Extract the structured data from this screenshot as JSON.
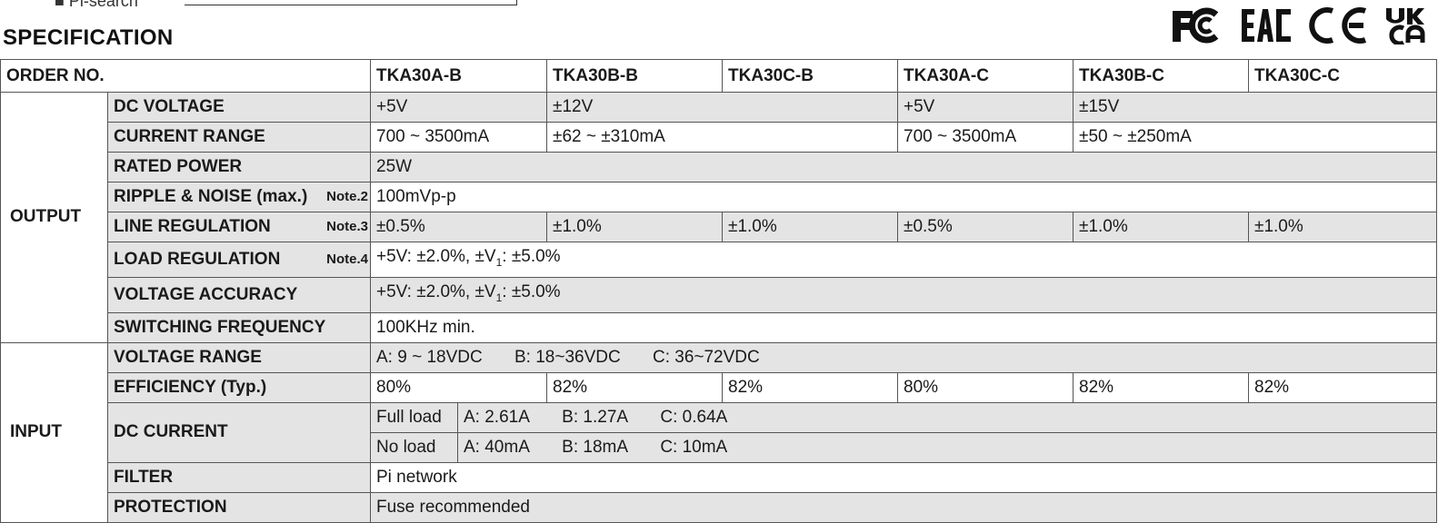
{
  "header": {
    "top_cut_text": "■ Pi-search",
    "title": "SPECIFICATION",
    "certs": [
      "fc-logo",
      "eac-logo",
      "ce-logo",
      "ukca-logo"
    ]
  },
  "table": {
    "order_no_label": "ORDER NO.",
    "models": [
      "TKA30A-B",
      "TKA30B-B",
      "TKA30C-B",
      "TKA30A-C",
      "TKA30B-C",
      "TKA30C-C"
    ],
    "output": {
      "group_label": "OUTPUT",
      "dc_voltage": {
        "label": "DC VOLTAGE",
        "values": [
          "+5V",
          "±12V",
          "+5V",
          "±15V"
        ]
      },
      "current_range": {
        "label": "CURRENT RANGE",
        "values": [
          "700 ~ 3500mA",
          "±62 ~ ±310mA",
          "700 ~ 3500mA",
          "±50 ~ ±250mA"
        ]
      },
      "rated_power": {
        "label": "RATED POWER",
        "value": "25W"
      },
      "ripple_noise": {
        "label": "RIPPLE & NOISE (max.)",
        "note": "Note.2",
        "value": "100mVp-p"
      },
      "line_regulation": {
        "label": "LINE REGULATION",
        "note": "Note.3",
        "values": [
          "±0.5%",
          "±1.0%",
          "±1.0%",
          "±0.5%",
          "±1.0%",
          "±1.0%"
        ]
      },
      "load_regulation": {
        "label": "LOAD REGULATION",
        "note": "Note.4",
        "value_a": "+5V: ±2.0%, ±V",
        "value_sub": "1",
        "value_b": ": ±5.0%"
      },
      "voltage_accuracy": {
        "label": "VOLTAGE ACCURACY",
        "value_a": "+5V: ±2.0%, ±V",
        "value_sub": "1",
        "value_b": ": ±5.0%"
      },
      "switching_frequency": {
        "label": "SWITCHING FREQUENCY",
        "value": "100KHz  min."
      }
    },
    "input": {
      "group_label": "INPUT",
      "voltage_range": {
        "label": "VOLTAGE RANGE",
        "a": "A: 9 ~ 18VDC",
        "b": "B: 18~36VDC",
        "c": "C: 36~72VDC"
      },
      "efficiency": {
        "label": "EFFICIENCY (Typ.)",
        "values": [
          "80%",
          "82%",
          "82%",
          "80%",
          "82%",
          "82%"
        ]
      },
      "dc_current": {
        "label": "DC CURRENT",
        "full_load": {
          "label": "Full load",
          "a": "A: 2.61A",
          "b": "B: 1.27A",
          "c": "C: 0.64A"
        },
        "no_load": {
          "label": "No load",
          "a": "A: 40mA",
          "b": "B: 18mA",
          "c": "C: 10mA"
        }
      },
      "filter": {
        "label": "FILTER",
        "value": "Pi  network"
      },
      "protection": {
        "label": "PROTECTION",
        "value": "Fuse recommended"
      }
    }
  }
}
